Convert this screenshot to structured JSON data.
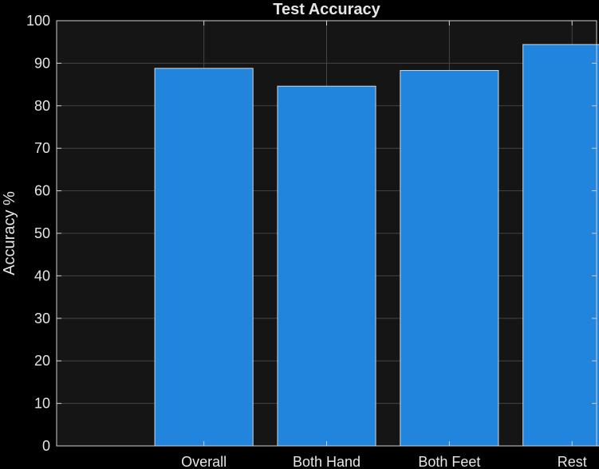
{
  "chart_data": {
    "type": "bar",
    "title": "Test Accuracy",
    "xlabel": "",
    "ylabel": "Accuracy %",
    "categories": [
      "Overall",
      "Both Hand",
      "Both Feet",
      "Rest"
    ],
    "values": [
      88.8,
      84.6,
      88.3,
      94.4
    ],
    "ylim": [
      0,
      100
    ],
    "yticks": [
      0,
      10,
      20,
      30,
      40,
      50,
      60,
      70,
      80,
      90,
      100
    ],
    "xlim": [
      -0.2,
      4.2
    ],
    "grid": true,
    "colors": {
      "bar_fill": "#2185de",
      "bar_edge": "#d6d6d6",
      "axes_bg": "#151515",
      "figure_bg": "#000000",
      "grid": "#444444",
      "axis_line": "#d0d0d0",
      "text": "#e6e6e6"
    }
  }
}
